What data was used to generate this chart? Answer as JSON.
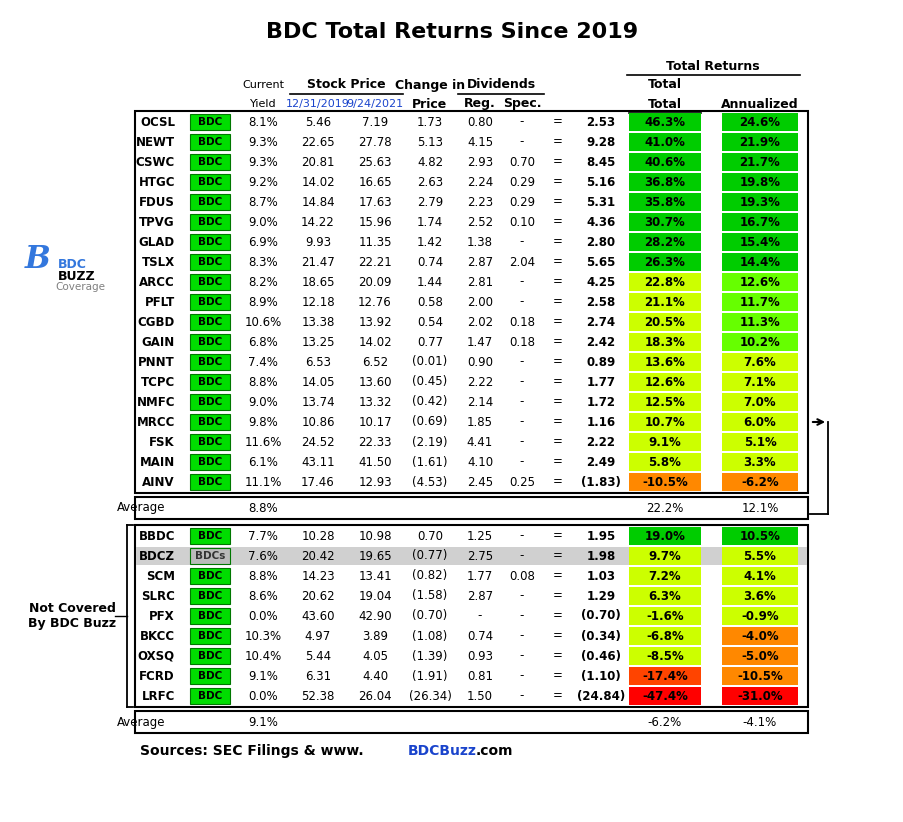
{
  "title": "BDC Total Returns Since 2019",
  "covered_rows": [
    [
      "OCSL",
      "BDC",
      "8.1%",
      "5.46",
      "7.19",
      "1.73",
      "0.80",
      "-",
      "=",
      "2.53",
      "46.3%",
      "24.6%"
    ],
    [
      "NEWT",
      "BDC",
      "9.3%",
      "22.65",
      "27.78",
      "5.13",
      "4.15",
      "-",
      "=",
      "9.28",
      "41.0%",
      "21.9%"
    ],
    [
      "CSWC",
      "BDC",
      "9.3%",
      "20.81",
      "25.63",
      "4.82",
      "2.93",
      "0.70",
      "=",
      "8.45",
      "40.6%",
      "21.7%"
    ],
    [
      "HTGC",
      "BDC",
      "9.2%",
      "14.02",
      "16.65",
      "2.63",
      "2.24",
      "0.29",
      "=",
      "5.16",
      "36.8%",
      "19.8%"
    ],
    [
      "FDUS",
      "BDC",
      "8.7%",
      "14.84",
      "17.63",
      "2.79",
      "2.23",
      "0.29",
      "=",
      "5.31",
      "35.8%",
      "19.3%"
    ],
    [
      "TPVG",
      "BDC",
      "9.0%",
      "14.22",
      "15.96",
      "1.74",
      "2.52",
      "0.10",
      "=",
      "4.36",
      "30.7%",
      "16.7%"
    ],
    [
      "GLAD",
      "BDC",
      "6.9%",
      "9.93",
      "11.35",
      "1.42",
      "1.38",
      "-",
      "=",
      "2.80",
      "28.2%",
      "15.4%"
    ],
    [
      "TSLX",
      "BDC",
      "8.3%",
      "21.47",
      "22.21",
      "0.74",
      "2.87",
      "2.04",
      "=",
      "5.65",
      "26.3%",
      "14.4%"
    ],
    [
      "ARCC",
      "BDC",
      "8.2%",
      "18.65",
      "20.09",
      "1.44",
      "2.81",
      "-",
      "=",
      "4.25",
      "22.8%",
      "12.6%"
    ],
    [
      "PFLT",
      "BDC",
      "8.9%",
      "12.18",
      "12.76",
      "0.58",
      "2.00",
      "-",
      "=",
      "2.58",
      "21.1%",
      "11.7%"
    ],
    [
      "CGBD",
      "BDC",
      "10.6%",
      "13.38",
      "13.92",
      "0.54",
      "2.02",
      "0.18",
      "=",
      "2.74",
      "20.5%",
      "11.3%"
    ],
    [
      "GAIN",
      "BDC",
      "6.8%",
      "13.25",
      "14.02",
      "0.77",
      "1.47",
      "0.18",
      "=",
      "2.42",
      "18.3%",
      "10.2%"
    ],
    [
      "PNNT",
      "BDC",
      "7.4%",
      "6.53",
      "6.52",
      "(0.01)",
      "0.90",
      "-",
      "=",
      "0.89",
      "13.6%",
      "7.6%"
    ],
    [
      "TCPC",
      "BDC",
      "8.8%",
      "14.05",
      "13.60",
      "(0.45)",
      "2.22",
      "-",
      "=",
      "1.77",
      "12.6%",
      "7.1%"
    ],
    [
      "NMFC",
      "BDC",
      "9.0%",
      "13.74",
      "13.32",
      "(0.42)",
      "2.14",
      "-",
      "=",
      "1.72",
      "12.5%",
      "7.0%"
    ],
    [
      "MRCC",
      "BDC",
      "9.8%",
      "10.86",
      "10.17",
      "(0.69)",
      "1.85",
      "-",
      "=",
      "1.16",
      "10.7%",
      "6.0%"
    ],
    [
      "FSK",
      "BDC",
      "11.6%",
      "24.52",
      "22.33",
      "(2.19)",
      "4.41",
      "-",
      "=",
      "2.22",
      "9.1%",
      "5.1%"
    ],
    [
      "MAIN",
      "BDC",
      "6.1%",
      "43.11",
      "41.50",
      "(1.61)",
      "4.10",
      "-",
      "=",
      "2.49",
      "5.8%",
      "3.3%"
    ],
    [
      "AINV",
      "BDC",
      "11.1%",
      "17.46",
      "12.93",
      "(4.53)",
      "2.45",
      "0.25",
      "=",
      "(1.83)",
      "-10.5%",
      "-6.2%"
    ]
  ],
  "avg_covered": [
    "Average",
    "",
    "8.8%",
    "",
    "",
    "",
    "",
    "",
    "",
    "",
    "22.2%",
    "12.1%"
  ],
  "notcovered_rows": [
    [
      "BBDC",
      "BDC",
      "7.7%",
      "10.28",
      "10.98",
      "0.70",
      "1.25",
      "-",
      "=",
      "1.95",
      "19.0%",
      "10.5%"
    ],
    [
      "BDCZ",
      "BDCs",
      "7.6%",
      "20.42",
      "19.65",
      "(0.77)",
      "2.75",
      "-",
      "=",
      "1.98",
      "9.7%",
      "5.5%"
    ],
    [
      "SCM",
      "BDC",
      "8.8%",
      "14.23",
      "13.41",
      "(0.82)",
      "1.77",
      "0.08",
      "=",
      "1.03",
      "7.2%",
      "4.1%"
    ],
    [
      "SLRC",
      "BDC",
      "8.6%",
      "20.62",
      "19.04",
      "(1.58)",
      "2.87",
      "-",
      "=",
      "1.29",
      "6.3%",
      "3.6%"
    ],
    [
      "PFX",
      "BDC",
      "0.0%",
      "43.60",
      "42.90",
      "(0.70)",
      "-",
      "-",
      "=",
      "(0.70)",
      "-1.6%",
      "-0.9%"
    ],
    [
      "BKCC",
      "BDC",
      "10.3%",
      "4.97",
      "3.89",
      "(1.08)",
      "0.74",
      "-",
      "=",
      "(0.34)",
      "-6.8%",
      "-4.0%"
    ],
    [
      "OXSQ",
      "BDC",
      "10.4%",
      "5.44",
      "4.05",
      "(1.39)",
      "0.93",
      "-",
      "=",
      "(0.46)",
      "-8.5%",
      "-5.0%"
    ],
    [
      "FCRD",
      "BDC",
      "9.1%",
      "6.31",
      "4.40",
      "(1.91)",
      "0.81",
      "-",
      "=",
      "(1.10)",
      "-17.4%",
      "-10.5%"
    ],
    [
      "LRFC",
      "BDC",
      "0.0%",
      "52.38",
      "26.04",
      "(26.34)",
      "1.50",
      "-",
      "=",
      "(24.84)",
      "-47.4%",
      "-31.0%"
    ]
  ],
  "avg_notcovered": [
    "Average",
    "",
    "9.1%",
    "",
    "",
    "",
    "",
    "",
    "",
    "",
    "-6.2%",
    "-4.1%"
  ],
  "total_colors_covered": [
    "#00cc00",
    "#00cc00",
    "#00cc00",
    "#00cc00",
    "#00cc00",
    "#00cc00",
    "#00cc00",
    "#00cc00",
    "#ccff00",
    "#ccff00",
    "#ccff00",
    "#ccff00",
    "#ccff00",
    "#ccff00",
    "#ccff00",
    "#ccff00",
    "#ccff00",
    "#ccff00",
    "#ff8800"
  ],
  "ann_colors_covered": [
    "#00cc00",
    "#00cc00",
    "#00cc00",
    "#00cc00",
    "#00cc00",
    "#00cc00",
    "#00cc00",
    "#00cc00",
    "#66ff00",
    "#66ff00",
    "#66ff00",
    "#66ff00",
    "#ccff00",
    "#ccff00",
    "#ccff00",
    "#ccff00",
    "#ccff00",
    "#ccff00",
    "#ff8800"
  ],
  "total_colors_notcovered": [
    "#00cc00",
    "#ccff00",
    "#ccff00",
    "#ccff00",
    "#ccff00",
    "#ccff00",
    "#ccff00",
    "#ff4400",
    "#ff0000"
  ],
  "ann_colors_notcovered": [
    "#00cc00",
    "#ccff00",
    "#ccff00",
    "#ccff00",
    "#ccff00",
    "#ff8800",
    "#ff8800",
    "#ff8800",
    "#ff0000"
  ]
}
